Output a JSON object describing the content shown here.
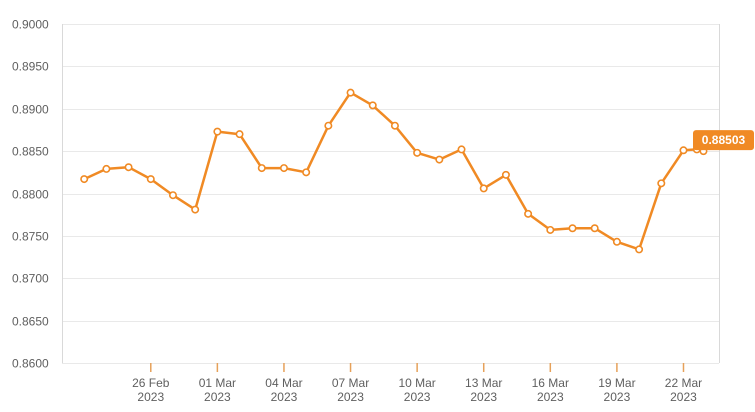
{
  "chart_data": {
    "type": "line",
    "x_labels": [
      {
        "day": 3,
        "date": "26 Feb",
        "year": "2023"
      },
      {
        "day": 6,
        "date": "01 Mar",
        "year": "2023"
      },
      {
        "day": 9,
        "date": "04 Mar",
        "year": "2023"
      },
      {
        "day": 12,
        "date": "07 Mar",
        "year": "2023"
      },
      {
        "day": 15,
        "date": "10 Mar",
        "year": "2023"
      },
      {
        "day": 18,
        "date": "13 Mar",
        "year": "2023"
      },
      {
        "day": 21,
        "date": "16 Mar",
        "year": "2023"
      },
      {
        "day": 24,
        "date": "19 Mar",
        "year": "2023"
      },
      {
        "day": 27,
        "date": "22 Mar",
        "year": "2023"
      }
    ],
    "x_range": [
      -1.0,
      28.6
    ],
    "ylim": [
      0.86,
      0.9
    ],
    "y_ticks": [
      "0.9000",
      "0.8950",
      "0.8900",
      "0.8850",
      "0.8800",
      "0.8750",
      "0.8700",
      "0.8650",
      "0.8600"
    ],
    "grid": true,
    "colors": {
      "series": "#f08a24",
      "badge": "#f08a24",
      "tick": "#e6a15a"
    },
    "series": [
      {
        "points": [
          {
            "x": 0,
            "y": 0.8817
          },
          {
            "x": 1,
            "y": 0.8829
          },
          {
            "x": 2,
            "y": 0.8831
          },
          {
            "x": 3,
            "y": 0.8817
          },
          {
            "x": 4,
            "y": 0.8798
          },
          {
            "x": 5,
            "y": 0.8781
          },
          {
            "x": 6,
            "y": 0.8873
          },
          {
            "x": 7,
            "y": 0.887
          },
          {
            "x": 8,
            "y": 0.883
          },
          {
            "x": 9,
            "y": 0.883
          },
          {
            "x": 10,
            "y": 0.8825
          },
          {
            "x": 11,
            "y": 0.888
          },
          {
            "x": 12,
            "y": 0.8919
          },
          {
            "x": 13,
            "y": 0.8904
          },
          {
            "x": 14,
            "y": 0.888
          },
          {
            "x": 15,
            "y": 0.8848
          },
          {
            "x": 16,
            "y": 0.884
          },
          {
            "x": 17,
            "y": 0.8852
          },
          {
            "x": 18,
            "y": 0.8806
          },
          {
            "x": 19,
            "y": 0.8822
          },
          {
            "x": 20,
            "y": 0.8776
          },
          {
            "x": 21,
            "y": 0.8757
          },
          {
            "x": 22,
            "y": 0.8759
          },
          {
            "x": 23,
            "y": 0.8759
          },
          {
            "x": 24,
            "y": 0.8743
          },
          {
            "x": 25,
            "y": 0.8734
          },
          {
            "x": 26,
            "y": 0.8812
          },
          {
            "x": 27,
            "y": 0.8851
          },
          {
            "x": 27.6,
            "y": 0.8852
          },
          {
            "x": 27.9,
            "y": 0.885
          }
        ]
      }
    ],
    "last_value_label": "0.88503"
  }
}
